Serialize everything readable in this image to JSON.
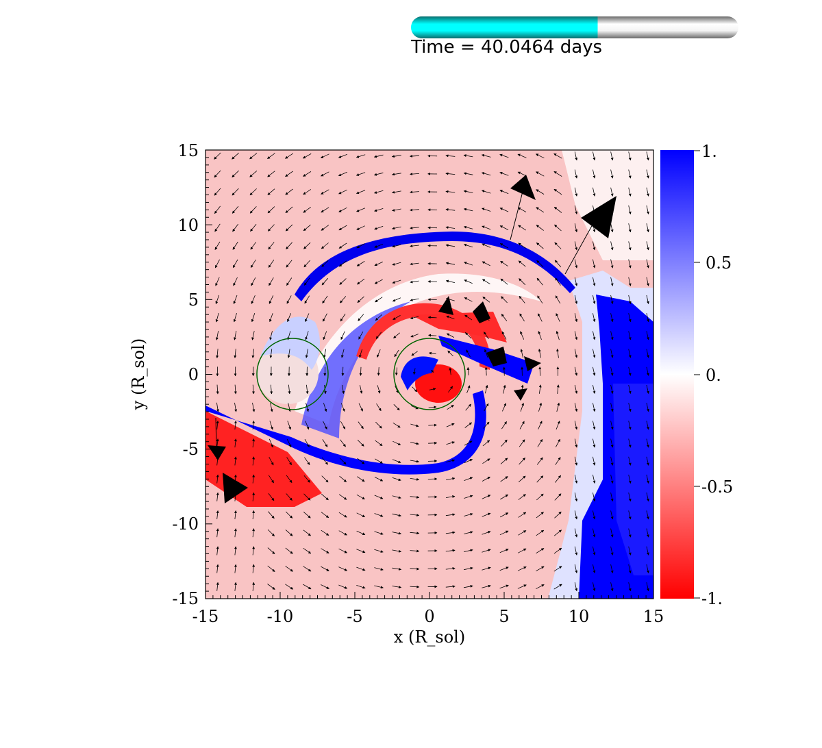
{
  "time_bar": {
    "label": "Time = 40.0464 days",
    "progress": 0.57,
    "fill_color": "#00e5e5",
    "track_color": "#d8d8d8"
  },
  "chart_data": {
    "type": "heatmap",
    "title": "",
    "xlabel": "x (R_sol)",
    "ylabel": "y (R_sol)",
    "xlim": [
      -15,
      15
    ],
    "ylim": [
      -15,
      15
    ],
    "x_ticks": [
      "-15",
      "-10",
      "-5",
      "0",
      "5",
      "10",
      "15"
    ],
    "y_ticks": [
      "15",
      "10",
      "5",
      "0",
      "-5",
      "-10",
      "-15"
    ],
    "colorbar": {
      "range": [
        -1,
        1
      ],
      "ticks": [
        "1.",
        "0.5",
        "0.",
        "-0.5",
        "-1."
      ],
      "colormap": [
        "#ff0000",
        "#ffffff",
        "#0000ff"
      ]
    },
    "overlay": "velocity vector field (arrows)",
    "circles": [
      {
        "cx": -9,
        "cy": 0,
        "r": 2.4,
        "color": "#006400"
      },
      {
        "cx": 0,
        "cy": 0,
        "r": 2.4,
        "color": "#006400"
      }
    ]
  }
}
